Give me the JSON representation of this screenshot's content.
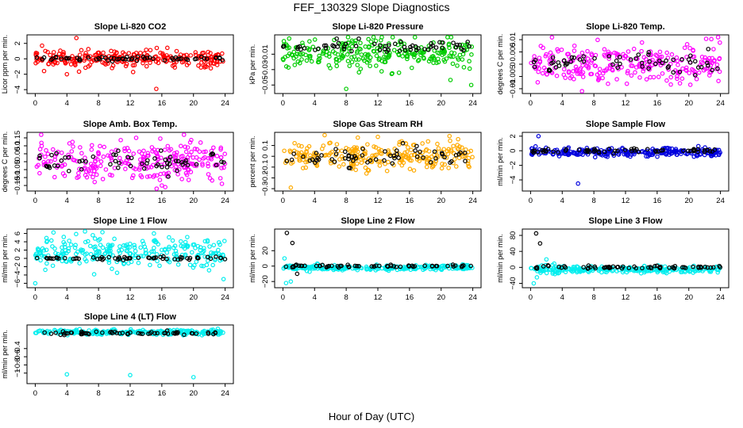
{
  "title": "FEF_130329  Slope Diagnostics",
  "xlabel": "Hour of Day (UTC)",
  "colors": {
    "series_black": "#000000"
  },
  "chart_data": [
    {
      "type": "scatter",
      "title": "Slope Li-820 CO2",
      "ylabel": "Licor ppm per min.",
      "xlim": [
        0,
        24
      ],
      "ylim": [
        -4.2,
        2.8
      ],
      "xticks": [
        0,
        4,
        8,
        12,
        16,
        20,
        24
      ],
      "yticks": [
        -4,
        -2,
        0,
        2
      ],
      "color": "#ff0000",
      "main": {
        "center": 0.0,
        "spread": 0.6,
        "outliers": [
          [
            5.2,
            2.7
          ],
          [
            15.3,
            -3.9
          ],
          [
            4.0,
            -2.0
          ]
        ]
      },
      "black": {
        "center": 0.05,
        "spread": 0.15
      }
    },
    {
      "type": "scatter",
      "title": "Slope Li-820 Pressure",
      "ylabel": "kPa per min.",
      "xlim": [
        0,
        24
      ],
      "ylim": [
        -0.058,
        0.012
      ],
      "xticks": [
        0,
        4,
        8,
        12,
        16,
        20,
        24
      ],
      "yticks": [
        -0.05,
        -0.03,
        -0.01
      ],
      "color": "#00cc00",
      "main": {
        "center": -0.01,
        "spread": 0.01,
        "outliers": [
          [
            8,
            -0.055
          ],
          [
            12.5,
            0.012
          ],
          [
            23.8,
            -0.05
          ]
        ]
      },
      "black": {
        "center": 0.0,
        "spread": 0.004
      }
    },
    {
      "type": "scatter",
      "title": "Slope Li-820 Temp.",
      "ylabel": "degrees C per min.",
      "xlim": [
        0,
        24
      ],
      "ylim": [
        -0.011,
        0.011
      ],
      "xticks": [
        0,
        4,
        8,
        12,
        16,
        20,
        24
      ],
      "yticks": [
        -0.01,
        -0.005,
        0,
        0.005,
        0.01
      ],
      "color": "#ff00ff",
      "main": {
        "center": 0.0,
        "spread": 0.004,
        "outliers": [
          [
            23.7,
            0.011
          ],
          [
            6.5,
            -0.011
          ]
        ]
      },
      "black": {
        "center": 0.0,
        "spread": 0.002
      }
    },
    {
      "type": "scatter",
      "title": "Slope Amb. Box Temp.",
      "ylabel": "degrees C per min.",
      "xlim": [
        0,
        24
      ],
      "ylim": [
        -0.17,
        0.17
      ],
      "xticks": [
        0,
        4,
        8,
        12,
        16,
        20,
        24
      ],
      "yticks": [
        -0.15,
        -0.1,
        -0.05,
        0.0,
        0.05,
        0.1,
        0.15
      ],
      "color": "#ff00ff",
      "main": {
        "center": 0.0,
        "spread": 0.06,
        "outliers": [
          [
            18.8,
            0.17
          ],
          [
            16,
            -0.15
          ]
        ]
      },
      "black": {
        "center": 0.0,
        "spread": 0.03
      }
    },
    {
      "type": "scatter",
      "title": "Slope Gas Stream RH",
      "ylabel": "percent per min.",
      "xlim": [
        0,
        24
      ],
      "ylim": [
        -0.3,
        0.2
      ],
      "xticks": [
        0,
        4,
        8,
        12,
        16,
        20,
        24
      ],
      "yticks": [
        -0.3,
        -0.2,
        -0.1,
        0,
        0.1
      ],
      "color": "#ffaa00",
      "main": {
        "center": 0.0,
        "spread": 0.06,
        "outliers": [
          [
            12,
            0.18
          ],
          [
            1,
            -0.29
          ]
        ]
      },
      "black": {
        "center": 0.0,
        "spread": 0.05
      }
    },
    {
      "type": "scatter",
      "title": "Slope Sample Flow",
      "ylabel": "ml/min per min.",
      "xlim": [
        0,
        24
      ],
      "ylim": [
        -5.2,
        2.2
      ],
      "xticks": [
        0,
        4,
        8,
        12,
        16,
        20,
        24
      ],
      "yticks": [
        -4,
        -2,
        0,
        2
      ],
      "color": "#0000dd",
      "main": {
        "center": -0.2,
        "spread": 0.3,
        "outliers": [
          [
            1,
            2
          ],
          [
            6,
            -4.5
          ]
        ]
      },
      "black": {
        "center": 0.0,
        "spread": 0.15
      }
    },
    {
      "type": "scatter",
      "title": "Slope Line 1 Flow",
      "ylabel": "ml/min per min.",
      "xlim": [
        0,
        24
      ],
      "ylim": [
        -6.5,
        6.5
      ],
      "xticks": [
        0,
        4,
        8,
        12,
        16,
        20,
        24
      ],
      "yticks": [
        -6,
        -4,
        -2,
        0,
        2,
        4,
        6
      ],
      "color": "#00eeee",
      "main": {
        "center": 1.5,
        "spread": 1.8,
        "outliers": [
          [
            0,
            -6
          ],
          [
            23.8,
            -5
          ],
          [
            15,
            6
          ]
        ]
      },
      "black": {
        "center": 0.0,
        "spread": 0.2
      }
    },
    {
      "type": "scatter",
      "title": "Slope Line 2 Flow",
      "ylabel": "ml/min per min.",
      "xlim": [
        0,
        24
      ],
      "ylim": [
        -25,
        45
      ],
      "xticks": [
        0,
        4,
        8,
        12,
        16,
        20,
        24
      ],
      "yticks": [
        -20,
        0,
        20
      ],
      "color": "#00eeee",
      "main": {
        "center": -2,
        "spread": 1.5,
        "outliers": [
          [
            0.4,
            -22
          ],
          [
            0.2,
            10
          ],
          [
            1,
            -20
          ]
        ]
      },
      "black": {
        "center": 0.0,
        "spread": 0.8,
        "outliers": [
          [
            0.5,
            43
          ],
          [
            1.2,
            30
          ],
          [
            1.8,
            -10
          ]
        ]
      }
    },
    {
      "type": "scatter",
      "title": "Slope Line 3 Flow",
      "ylabel": "ml/min per min.",
      "xlim": [
        0,
        24
      ],
      "ylim": [
        -45,
        90
      ],
      "xticks": [
        0,
        4,
        8,
        12,
        16,
        20,
        24
      ],
      "yticks": [
        -40,
        0,
        40,
        80
      ],
      "color": "#00eeee",
      "main": {
        "center": -5,
        "spread": 4,
        "outliers": [
          [
            0.4,
            -40
          ],
          [
            2,
            20
          ],
          [
            0.8,
            -25
          ]
        ]
      },
      "black": {
        "center": 0.0,
        "spread": 2,
        "outliers": [
          [
            0.7,
            85
          ],
          [
            1.2,
            60
          ],
          [
            2.2,
            5
          ]
        ]
      }
    },
    {
      "type": "scatter",
      "title": "Slope Line 4 (LT) Flow",
      "ylabel": "ml/min per min.",
      "xlim": [
        0,
        24
      ],
      "ylim": [
        -1.2,
        0.12
      ],
      "xticks": [
        0,
        4,
        8,
        12,
        16,
        20,
        24
      ],
      "yticks": [
        -1.0,
        -0.8,
        -0.6,
        -0.4
      ],
      "color": "#00eeee",
      "main": {
        "center": 0.0,
        "spread": 0.03,
        "outliers": [
          [
            4,
            -1.03
          ],
          [
            12,
            -1.05
          ],
          [
            20,
            -1.1
          ]
        ]
      },
      "black": {
        "center": -0.02,
        "spread": 0.02
      }
    }
  ]
}
